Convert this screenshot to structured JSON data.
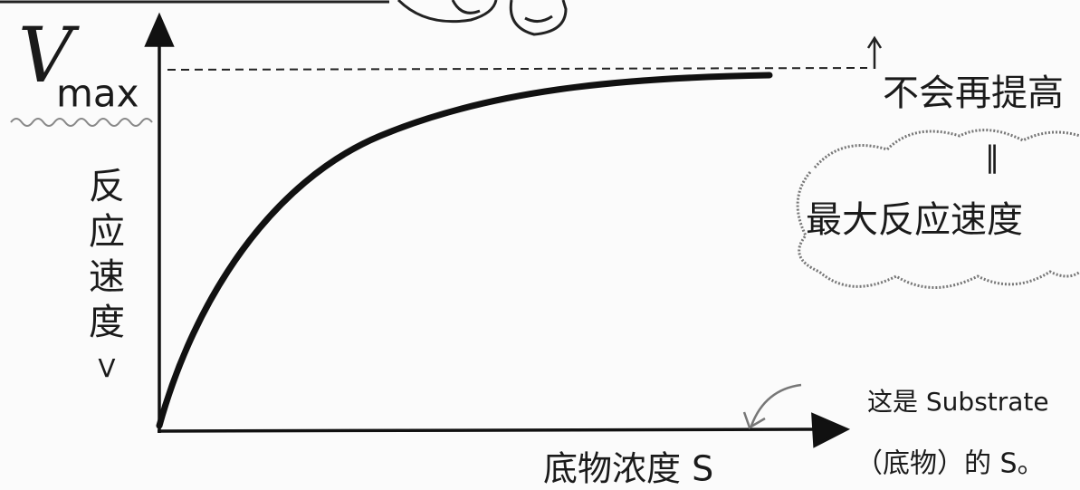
{
  "vmax_label": {
    "main": "V",
    "sub": "max"
  },
  "y_axis_label": [
    "反",
    "应",
    "速",
    "度",
    "V"
  ],
  "x_axis_label": "底物浓度 S",
  "annotations": {
    "no_increase": "不会再提高",
    "equals": "‖",
    "max_speed": "最大反应速度",
    "substrate_line1": "这是 Substrate",
    "substrate_line2": "（底物）的 S。"
  }
}
